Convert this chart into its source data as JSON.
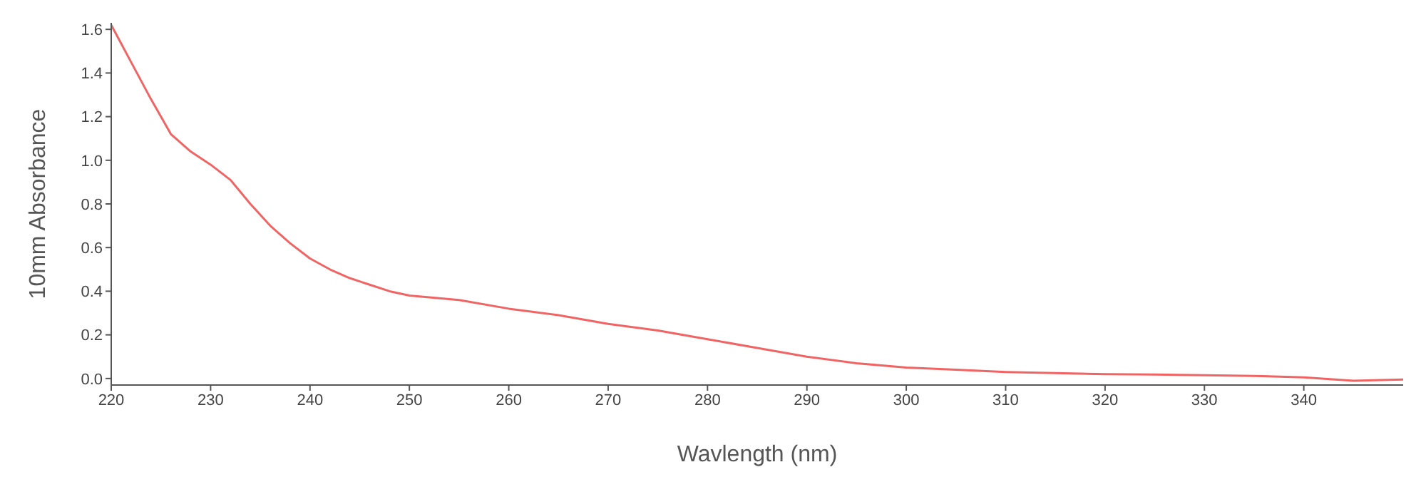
{
  "chart_data": {
    "type": "line",
    "xlabel": "Wavlength (nm)",
    "ylabel": "10mm Absorbance",
    "x": [
      220,
      222,
      224,
      226,
      228,
      230,
      232,
      234,
      236,
      238,
      240,
      242,
      244,
      246,
      248,
      250,
      255,
      260,
      265,
      270,
      275,
      280,
      285,
      290,
      295,
      300,
      305,
      310,
      315,
      320,
      325,
      330,
      335,
      340,
      345,
      350
    ],
    "series": [
      {
        "color": "#f06464",
        "values": [
          1.62,
          1.45,
          1.28,
          1.12,
          1.04,
          0.98,
          0.91,
          0.8,
          0.7,
          0.62,
          0.55,
          0.5,
          0.46,
          0.43,
          0.4,
          0.38,
          0.36,
          0.32,
          0.29,
          0.25,
          0.22,
          0.18,
          0.14,
          0.1,
          0.07,
          0.05,
          0.04,
          0.03,
          0.025,
          0.02,
          0.018,
          0.015,
          0.012,
          0.005,
          -0.01,
          -0.005
        ]
      }
    ],
    "xlim": [
      220,
      350
    ],
    "xticks": [
      220,
      230,
      240,
      250,
      260,
      270,
      280,
      290,
      300,
      310,
      320,
      330,
      340
    ],
    "ylim": [
      -0.03,
      1.63
    ],
    "yticks": [
      {
        "value": 0,
        "label": "0.0"
      },
      0.2,
      0.4,
      0.6,
      0.8,
      {
        "value": 1,
        "label": "1.0"
      },
      1.2,
      1.4,
      1.6
    ],
    "grid": false,
    "legend": false,
    "marker": "none",
    "line_style": "solid"
  }
}
